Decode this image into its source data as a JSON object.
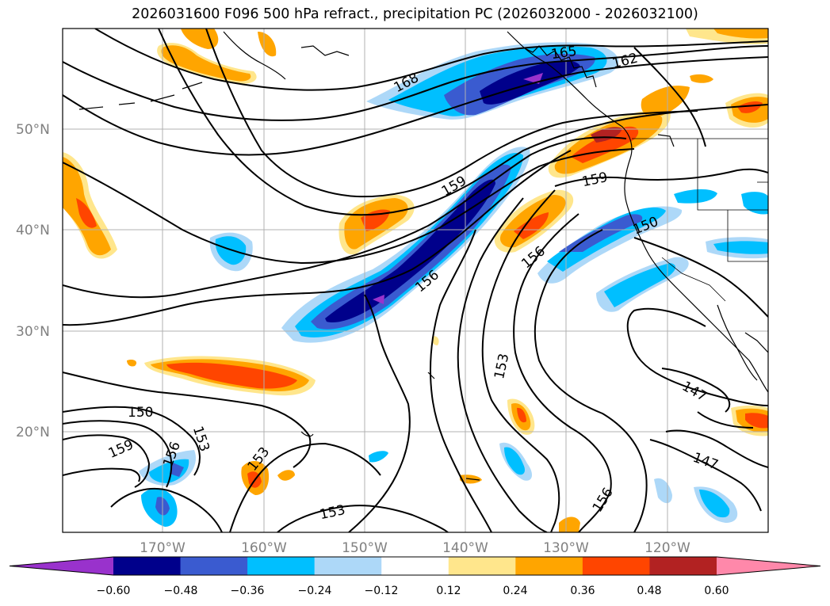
{
  "title": "2026031600 F096 500 hPa refract., precipitation PC (2026032000 - 2026032100)",
  "lat_labels": [
    "50°N",
    "40°N",
    "30°N",
    "20°N"
  ],
  "lon_labels": [
    "170°W",
    "160°W",
    "150°W",
    "140°W",
    "130°W",
    "120°W"
  ],
  "colorbar": {
    "ticks": [
      "−0.60",
      "−0.48",
      "−0.36",
      "−0.24",
      "−0.12",
      "0.12",
      "0.24",
      "0.36",
      "0.48",
      "0.60"
    ],
    "colors": [
      "#9932cc",
      "#00008b",
      "#3a5bd0",
      "#00bfff",
      "#add8f8",
      "#ffffff",
      "#ffe68c",
      "#ffa500",
      "#ff4500",
      "#b22222",
      "#ff88aa"
    ]
  },
  "contour_labels": [
    "168",
    "165",
    "162",
    "159",
    "159",
    "156",
    "156",
    "153",
    "150",
    "150",
    "159",
    "156",
    "153",
    "153",
    "153",
    "147",
    "147",
    "156"
  ],
  "colors": {
    "land_outline": "#000000",
    "grid": "#b0b0b0",
    "contour": "#000000"
  }
}
